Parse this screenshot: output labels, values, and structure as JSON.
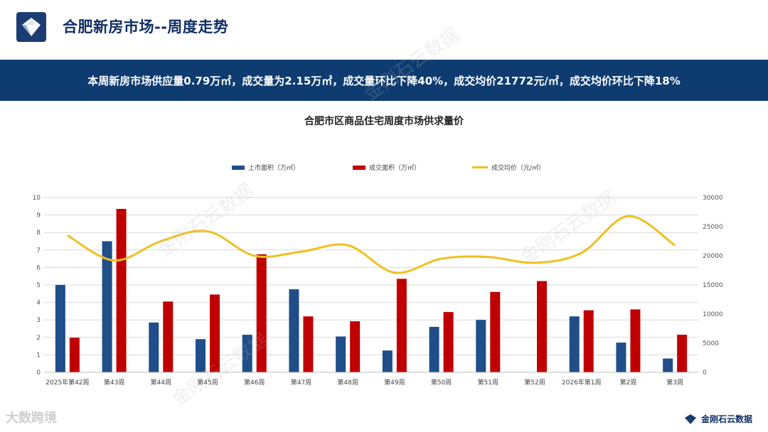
{
  "header": {
    "title": "合肥新房市场--周度走势",
    "banner": "本周新房市场供应量0.79万㎡，成交量为2.15万㎡，成交量环比下降40%，成交均价21772元/㎡，成交均价环比下降18%"
  },
  "footer": {
    "left_text": "大数跨境",
    "right_text": "金刚石云数据"
  },
  "watermark": "金刚石云数据",
  "colors": {
    "navy": "#0e3c70",
    "bar_supply": "#1f4e89",
    "bar_deal": "#c00000",
    "line_price": "#f0c020"
  },
  "chart_data": {
    "type": "bar",
    "title": "合肥市区商品住宅周度市场供求量价",
    "categories": [
      "2025年第42周",
      "第43周",
      "第44周",
      "第45周",
      "第46周",
      "第47周",
      "第48周",
      "第49周",
      "第50周",
      "第51周",
      "第52周",
      "2026年第1周",
      "第2周",
      "第3周"
    ],
    "series": [
      {
        "name": "上市面积（万㎡）",
        "type": "bar",
        "axis": "left",
        "values": [
          5.0,
          7.5,
          2.85,
          1.9,
          2.15,
          4.75,
          2.05,
          1.25,
          2.6,
          3.0,
          0,
          3.2,
          1.7,
          0.79
        ]
      },
      {
        "name": "成交面积（万㎡）",
        "type": "bar",
        "axis": "left",
        "values": [
          1.98,
          9.35,
          4.05,
          4.45,
          6.75,
          3.2,
          2.92,
          5.35,
          3.45,
          4.6,
          5.22,
          3.55,
          3.6,
          2.15
        ]
      },
      {
        "name": "成交均价（元/㎡）",
        "type": "line",
        "axis": "right",
        "values": [
          23500,
          19200,
          22500,
          24200,
          20000,
          20700,
          21800,
          17100,
          19500,
          19800,
          18800,
          20500,
          26800,
          21772
        ]
      }
    ],
    "y_left": {
      "min": 0,
      "max": 10,
      "ticks": [
        "0",
        "1",
        "2",
        "3",
        "4",
        "5",
        "6",
        "7",
        "8",
        "9",
        "10"
      ]
    },
    "y_right": {
      "min": 0,
      "max": 30000,
      "ticks": [
        "0",
        "5000",
        "10000",
        "15000",
        "20000",
        "25000",
        "30000"
      ]
    },
    "grid": true,
    "legend": "top-center"
  }
}
